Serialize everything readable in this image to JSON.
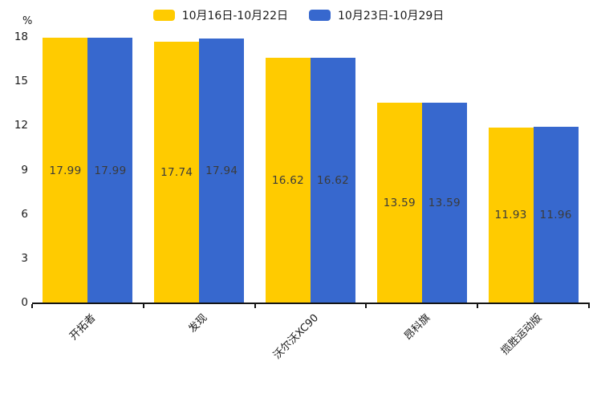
{
  "chart_data": {
    "type": "bar",
    "title": "",
    "xlabel": "",
    "ylabel": "%",
    "categories": [
      "开拓者",
      "发现",
      "沃尔沃XC90",
      "昂科旗",
      "揽胜运动版"
    ],
    "series": [
      {
        "name": "10月16日-10月22日",
        "color": "#FFCB00",
        "values": [
          17.99,
          17.74,
          16.62,
          13.59,
          11.93
        ]
      },
      {
        "name": "10月23日-10月29日",
        "color": "#3768CE",
        "values": [
          17.99,
          17.94,
          16.62,
          13.59,
          11.96
        ]
      }
    ],
    "ylim": [
      0,
      18
    ],
    "yticks": [
      0,
      3,
      6,
      9,
      12,
      15,
      18
    ],
    "grid": false,
    "legend_position": "top",
    "value_label_decimals": 2,
    "axis_color": "#141414",
    "text_color": "#1a1a1a"
  }
}
